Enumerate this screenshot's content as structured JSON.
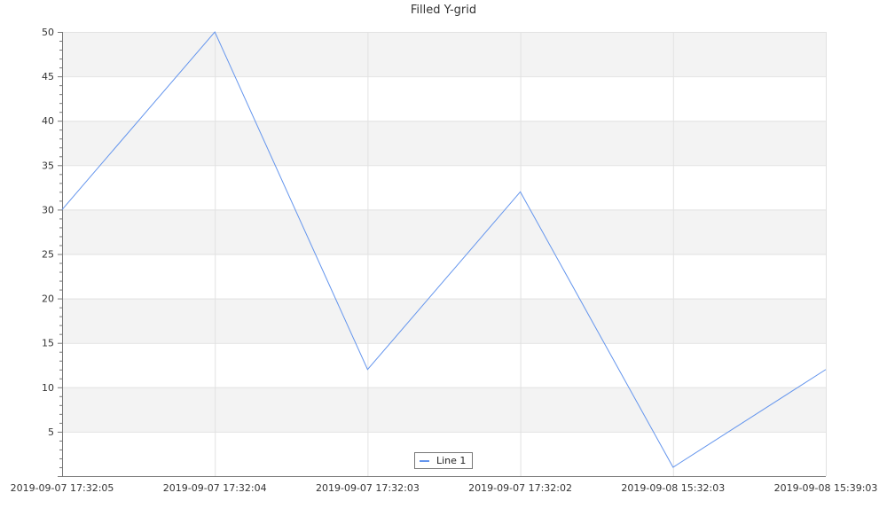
{
  "chart_data": {
    "type": "line",
    "title": "Filled Y-grid",
    "categories": [
      "2019-09-07 17:32:05",
      "2019-09-07 17:32:04",
      "2019-09-07 17:32:03",
      "2019-09-07 17:32:02",
      "2019-09-08 15:32:03",
      "2019-09-08 15:39:03"
    ],
    "series": [
      {
        "name": "Line 1",
        "values": [
          30,
          50,
          12,
          32,
          1,
          12
        ],
        "color": "#6495ed"
      }
    ],
    "ylim": [
      0,
      50
    ],
    "yticks": [
      5,
      10,
      15,
      20,
      25,
      30,
      35,
      40,
      45,
      50
    ],
    "grid": true,
    "grid_fill": "#f3f3f3",
    "legend": "bottom-center"
  }
}
